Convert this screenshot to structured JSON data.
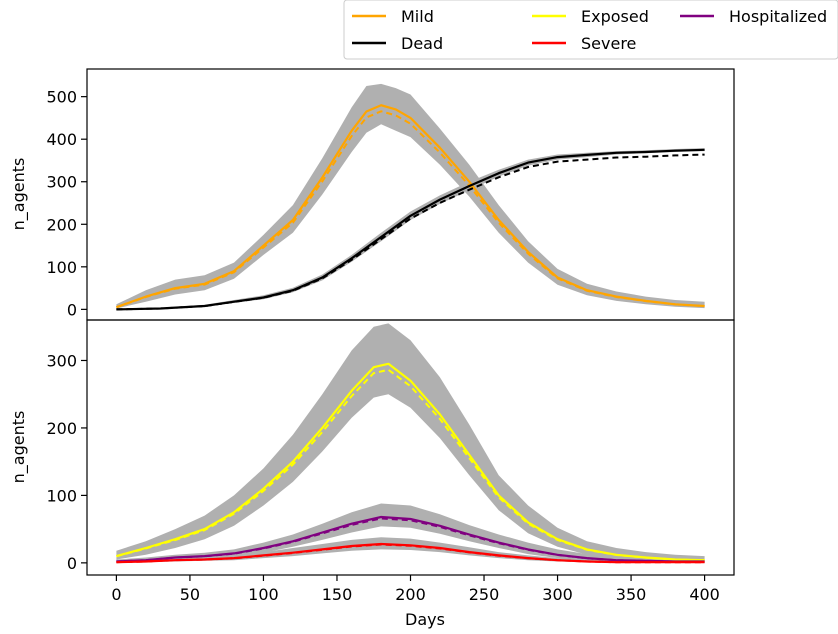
{
  "legend": {
    "placement": "top-right, outside above plots",
    "entries": [
      {
        "label": "Mild",
        "color": "#FFA500"
      },
      {
        "label": "Dead",
        "color": "#000000"
      },
      {
        "label": "Exposed",
        "color": "#FFFF00"
      },
      {
        "label": "Severe",
        "color": "#FF0000"
      },
      {
        "label": "Hospitalized",
        "color": "#800080"
      }
    ]
  },
  "chart_data": [
    {
      "type": "line",
      "xlabel": "",
      "ylabel": "n_agents",
      "xlim": [
        -20,
        420
      ],
      "ylim": [
        -25,
        565
      ],
      "yticks": [
        0,
        100,
        200,
        300,
        400,
        500
      ],
      "grid": false,
      "band_color": "#B0B0B0",
      "series": [
        {
          "name": "Mild",
          "color": "#FFA500",
          "x": [
            0,
            20,
            40,
            60,
            80,
            100,
            120,
            140,
            160,
            170,
            180,
            190,
            200,
            220,
            240,
            260,
            280,
            300,
            320,
            340,
            360,
            380,
            400
          ],
          "y": [
            5,
            30,
            50,
            60,
            90,
            150,
            210,
            310,
            420,
            465,
            480,
            470,
            450,
            380,
            300,
            210,
            135,
            75,
            45,
            30,
            20,
            12,
            8
          ],
          "band_low": [
            2,
            18,
            35,
            45,
            72,
            128,
            180,
            270,
            370,
            415,
            435,
            420,
            405,
            340,
            265,
            180,
            110,
            58,
            33,
            20,
            12,
            6,
            3
          ],
          "band_high": [
            12,
            45,
            70,
            80,
            110,
            175,
            245,
            355,
            475,
            525,
            530,
            520,
            505,
            425,
            340,
            245,
            160,
            95,
            60,
            42,
            30,
            22,
            18
          ]
        },
        {
          "name": "Dead",
          "color": "#000000",
          "x": [
            0,
            30,
            60,
            80,
            100,
            120,
            140,
            160,
            180,
            200,
            220,
            240,
            260,
            280,
            300,
            320,
            340,
            360,
            380,
            400
          ],
          "y": [
            0,
            2,
            8,
            18,
            28,
            45,
            75,
            120,
            170,
            220,
            258,
            290,
            320,
            345,
            358,
            363,
            368,
            370,
            373,
            375
          ],
          "band_low": [
            0,
            1,
            6,
            15,
            24,
            40,
            68,
            112,
            160,
            210,
            248,
            280,
            312,
            338,
            352,
            358,
            364,
            367,
            370,
            372
          ],
          "band_high": [
            1,
            4,
            11,
            22,
            33,
            51,
            82,
            128,
            180,
            230,
            268,
            300,
            328,
            352,
            364,
            368,
            372,
            374,
            377,
            379
          ]
        }
      ]
    },
    {
      "type": "line",
      "xlabel": "Days",
      "ylabel": "n_agents",
      "xlim": [
        -20,
        420
      ],
      "ylim": [
        -18,
        360
      ],
      "xticks": [
        0,
        50,
        100,
        150,
        200,
        250,
        300,
        350,
        400
      ],
      "yticks": [
        0,
        100,
        200,
        300
      ],
      "grid": false,
      "band_color": "#B0B0B0",
      "series": [
        {
          "name": "Exposed",
          "color": "#FFFF00",
          "x": [
            0,
            20,
            40,
            60,
            80,
            100,
            120,
            140,
            160,
            175,
            185,
            200,
            220,
            240,
            260,
            280,
            300,
            320,
            340,
            360,
            380,
            400
          ],
          "y": [
            10,
            22,
            35,
            50,
            75,
            110,
            150,
            200,
            255,
            290,
            295,
            270,
            220,
            160,
            100,
            60,
            35,
            20,
            12,
            8,
            5,
            4
          ],
          "band_low": [
            5,
            12,
            22,
            35,
            55,
            85,
            120,
            165,
            215,
            245,
            250,
            230,
            185,
            130,
            78,
            44,
            24,
            12,
            6,
            3,
            2,
            1
          ],
          "band_high": [
            18,
            32,
            50,
            70,
            100,
            140,
            190,
            250,
            315,
            350,
            355,
            330,
            275,
            205,
            130,
            85,
            52,
            32,
            22,
            16,
            12,
            10
          ]
        },
        {
          "name": "Hospitalized",
          "color": "#800080",
          "x": [
            0,
            20,
            40,
            60,
            80,
            100,
            120,
            140,
            160,
            180,
            200,
            220,
            240,
            260,
            280,
            300,
            320,
            340,
            360,
            380,
            400
          ],
          "y": [
            2,
            4,
            8,
            10,
            14,
            22,
            32,
            45,
            58,
            68,
            65,
            55,
            42,
            30,
            20,
            12,
            7,
            4,
            3,
            2,
            2
          ],
          "band_low": [
            0,
            2,
            4,
            6,
            9,
            15,
            24,
            34,
            45,
            54,
            52,
            43,
            32,
            22,
            13,
            7,
            3,
            1,
            1,
            0,
            0
          ],
          "band_high": [
            5,
            8,
            12,
            15,
            20,
            30,
            42,
            58,
            75,
            88,
            85,
            72,
            56,
            42,
            30,
            20,
            13,
            8,
            6,
            5,
            5
          ]
        },
        {
          "name": "Severe",
          "color": "#FF0000",
          "x": [
            0,
            20,
            40,
            60,
            80,
            100,
            120,
            140,
            160,
            180,
            200,
            220,
            240,
            260,
            280,
            300,
            320,
            340,
            360,
            380,
            400
          ],
          "y": [
            1,
            2,
            4,
            5,
            7,
            11,
            15,
            20,
            25,
            28,
            26,
            22,
            16,
            11,
            7,
            4,
            2,
            1,
            1,
            1,
            1
          ],
          "band_low": [
            0,
            1,
            2,
            3,
            4,
            7,
            10,
            14,
            18,
            20,
            19,
            16,
            11,
            7,
            4,
            2,
            1,
            0,
            0,
            0,
            0
          ],
          "band_high": [
            3,
            4,
            7,
            8,
            11,
            16,
            22,
            28,
            34,
            38,
            36,
            30,
            23,
            16,
            11,
            7,
            5,
            3,
            3,
            2,
            2
          ]
        }
      ]
    }
  ]
}
